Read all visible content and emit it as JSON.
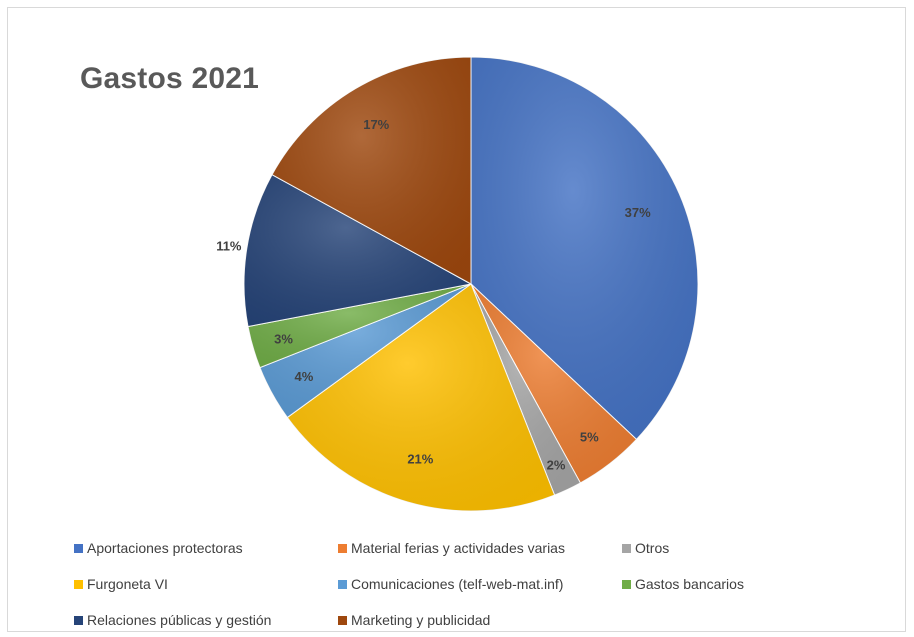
{
  "chart_data": {
    "type": "pie",
    "title": "Gastos 2021",
    "categories": [
      "Aportaciones protectoras",
      "Material ferias y actividades varias",
      "Otros",
      "Furgoneta VI",
      "Comunicaciones (telf-web-mat.inf)",
      "Gastos bancarios",
      "Relaciones públicas y gestión",
      "Marketing y publicidad"
    ],
    "values": [
      37,
      5,
      2,
      21,
      4,
      3,
      11,
      17
    ],
    "data_labels": [
      "37%",
      "5%",
      "2%",
      "21%",
      "4%",
      "3%",
      "11%",
      "17%"
    ],
    "colors": [
      "#4472c4",
      "#ed7d31",
      "#a5a5a5",
      "#ffc000",
      "#5b9bd5",
      "#70ad47",
      "#264478",
      "#9e480e"
    ],
    "legend_position": "bottom"
  }
}
